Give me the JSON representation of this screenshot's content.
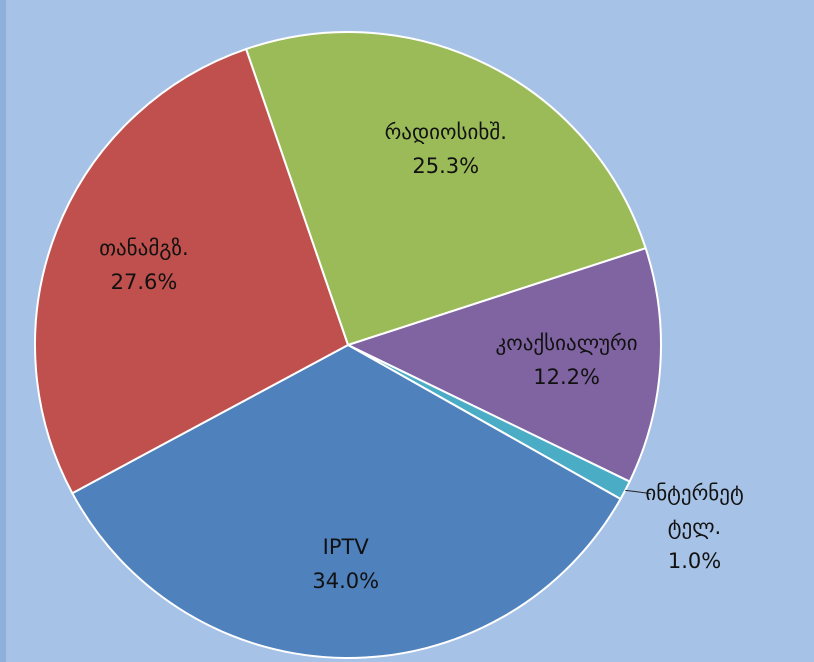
{
  "chart_data": {
    "type": "pie",
    "categories": [
      "რადიოსიხშ.",
      "კოაქსიალური",
      "ინტერნეტ ტელ.",
      "IPTV",
      "თანამგზ."
    ],
    "values": [
      25.3,
      12.2,
      1.0,
      34.0,
      27.6
    ],
    "value_labels": [
      "25.3%",
      "12.2%",
      "1.0%",
      "34.0%",
      "27.6%"
    ],
    "colors": [
      "#9bbb59",
      "#8064a2",
      "#4bacc6",
      "#4f81bd",
      "#c0504d"
    ]
  }
}
